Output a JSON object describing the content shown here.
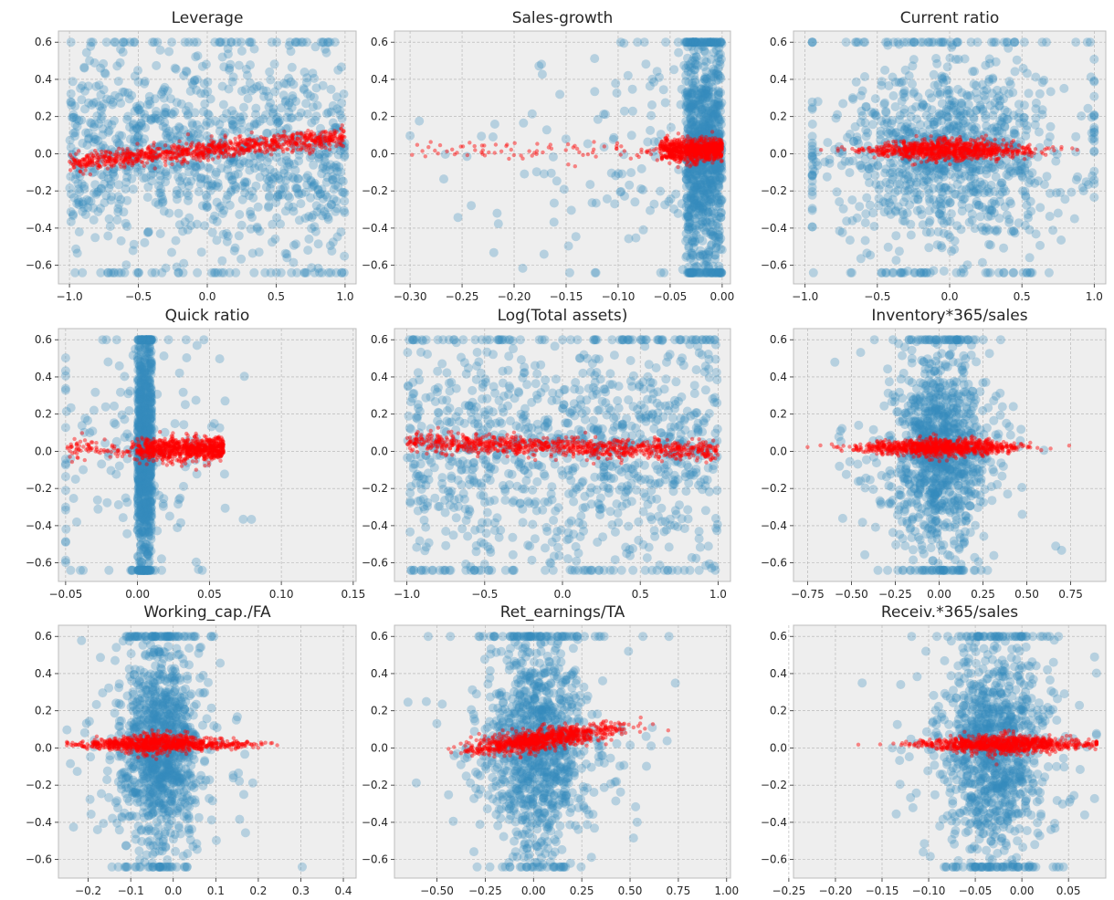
{
  "figure": {
    "style": "bmh",
    "panel_background": "#eeeeee",
    "grid_color": "#b0b0b0",
    "colors": {
      "population": "#348abd",
      "model": "#ff0000"
    }
  },
  "chart_data": [
    {
      "type": "scatter",
      "title": "Leverage",
      "xlim": [
        -1.08,
        1.08
      ],
      "ylim": [
        -0.7,
        0.66
      ],
      "xticks": [
        -1.0,
        -0.5,
        0.0,
        0.5,
        1.0
      ],
      "xticklabels": [
        "−1.0",
        "−0.5",
        "0.0",
        "0.5",
        "1.0"
      ],
      "yticks": [
        -0.6,
        -0.4,
        -0.2,
        0.0,
        0.2,
        0.4,
        0.6
      ],
      "yticklabels": [
        "−0.6",
        "−0.4",
        "−0.2",
        "0.0",
        "0.2",
        "0.4",
        "0.6"
      ],
      "grid": true,
      "series": [
        {
          "role": "population",
          "color": "#348abd",
          "shape": "uniform",
          "x_range": [
            -1.0,
            1.0
          ],
          "y_spread": 0.26,
          "y_clip": [
            -0.64,
            0.6
          ]
        },
        {
          "role": "model",
          "color": "#ff0000",
          "shape": "linear",
          "x_range": [
            -1.0,
            1.0
          ],
          "y_at_xmin": -0.05,
          "y_at_xmax": 0.09,
          "y_band": 0.05
        }
      ]
    },
    {
      "type": "scatter",
      "title": "Sales-growth",
      "xlim": [
        -0.315,
        0.008
      ],
      "ylim": [
        -0.7,
        0.66
      ],
      "xticks": [
        -0.3,
        -0.25,
        -0.2,
        -0.15,
        -0.1,
        -0.05,
        0.0
      ],
      "xticklabels": [
        "−0.30",
        "−0.25",
        "−0.20",
        "−0.15",
        "−0.10",
        "−0.05",
        "0.00"
      ],
      "yticks": [
        -0.6,
        -0.4,
        -0.2,
        0.0,
        0.2,
        0.4,
        0.6
      ],
      "yticklabels": [
        "−0.6",
        "−0.4",
        "−0.2",
        "0.0",
        "0.2",
        "0.4",
        "0.6"
      ],
      "grid": true,
      "series": [
        {
          "role": "population",
          "color": "#348abd",
          "shape": "left-tail",
          "x_range": [
            -0.3,
            0.0
          ],
          "x_core": [
            -0.035,
            0.0
          ],
          "y_spread": 0.3,
          "y_clip": [
            -0.64,
            0.6
          ]
        },
        {
          "role": "model",
          "color": "#ff0000",
          "shape": "cloud",
          "x_range": [
            -0.3,
            0.0
          ],
          "x_core": [
            -0.06,
            0.0
          ],
          "y_center": 0.02,
          "y_band": 0.05
        }
      ]
    },
    {
      "type": "scatter",
      "title": "Current ratio",
      "xlim": [
        -1.08,
        1.08
      ],
      "ylim": [
        -0.7,
        0.66
      ],
      "xticks": [
        -1.0,
        -0.5,
        0.0,
        0.5,
        1.0
      ],
      "xticklabels": [
        "−1.0",
        "−0.5",
        "0.0",
        "0.5",
        "1.0"
      ],
      "yticks": [
        -0.6,
        -0.4,
        -0.2,
        0.0,
        0.2,
        0.4,
        0.6
      ],
      "yticklabels": [
        "−0.6",
        "−0.4",
        "−0.2",
        "0.0",
        "0.2",
        "0.4",
        "0.6"
      ],
      "grid": true,
      "series": [
        {
          "role": "population",
          "color": "#348abd",
          "shape": "bell",
          "x_range": [
            -0.95,
            1.0
          ],
          "x_center": 0.0,
          "x_spread": 0.38,
          "y_spread": 0.22,
          "y_clip": [
            -0.64,
            0.6
          ]
        },
        {
          "role": "model",
          "color": "#ff0000",
          "shape": "ellipse",
          "x_range": [
            -0.95,
            1.0
          ],
          "x_center": 0.0,
          "y_center": 0.02,
          "y_band": 0.06
        }
      ]
    },
    {
      "type": "scatter",
      "title": "Quick ratio",
      "xlim": [
        -0.055,
        0.152
      ],
      "ylim": [
        -0.7,
        0.66
      ],
      "xticks": [
        -0.05,
        0.0,
        0.05,
        0.1,
        0.15
      ],
      "xticklabels": [
        "−0.05",
        "0.00",
        "0.05",
        "0.10",
        "0.15"
      ],
      "yticks": [
        -0.6,
        -0.4,
        -0.2,
        0.0,
        0.2,
        0.4,
        0.6
      ],
      "yticklabels": [
        "−0.6",
        "−0.4",
        "−0.2",
        "0.0",
        "0.2",
        "0.4",
        "0.6"
      ],
      "grid": true,
      "series": [
        {
          "role": "population",
          "color": "#348abd",
          "shape": "spike",
          "x_range": [
            -0.05,
            0.145
          ],
          "x_core": [
            0.0,
            0.01
          ],
          "y_spread": 0.3,
          "y_clip": [
            -0.64,
            0.6
          ]
        },
        {
          "role": "model",
          "color": "#ff0000",
          "shape": "cloud",
          "x_range": [
            -0.05,
            0.145
          ],
          "x_core": [
            0.0,
            0.06
          ],
          "y_center": 0.01,
          "y_band": 0.05
        }
      ]
    },
    {
      "type": "scatter",
      "title": "Log(Total assets)",
      "xlim": [
        -1.08,
        1.08
      ],
      "ylim": [
        -0.7,
        0.66
      ],
      "xticks": [
        -1.0,
        -0.5,
        0.0,
        0.5,
        1.0
      ],
      "xticklabels": [
        "−1.0",
        "−0.5",
        "0.0",
        "0.5",
        "1.0"
      ],
      "yticks": [
        -0.6,
        -0.4,
        -0.2,
        0.0,
        0.2,
        0.4,
        0.6
      ],
      "yticklabels": [
        "−0.6",
        "−0.4",
        "−0.2",
        "0.0",
        "0.2",
        "0.4",
        "0.6"
      ],
      "grid": true,
      "series": [
        {
          "role": "population",
          "color": "#348abd",
          "shape": "uniform",
          "x_range": [
            -1.0,
            1.0
          ],
          "y_spread": 0.3,
          "y_clip": [
            -0.64,
            0.6
          ]
        },
        {
          "role": "model",
          "color": "#ff0000",
          "shape": "linear",
          "x_range": [
            -1.0,
            1.0
          ],
          "y_at_xmin": 0.05,
          "y_at_xmax": 0.0,
          "y_band": 0.05
        }
      ]
    },
    {
      "type": "scatter",
      "title": "Inventory*365/sales",
      "xlim": [
        -0.83,
        0.95
      ],
      "ylim": [
        -0.7,
        0.66
      ],
      "xticks": [
        -0.75,
        -0.5,
        -0.25,
        0.0,
        0.25,
        0.5,
        0.75
      ],
      "xticklabels": [
        "−0.75",
        "−0.50",
        "−0.25",
        "0.00",
        "0.25",
        "0.50",
        "0.75"
      ],
      "yticks": [
        -0.6,
        -0.4,
        -0.2,
        0.0,
        0.2,
        0.4,
        0.6
      ],
      "yticklabels": [
        "−0.6",
        "−0.4",
        "−0.2",
        "0.0",
        "0.2",
        "0.4",
        "0.6"
      ],
      "grid": true,
      "series": [
        {
          "role": "population",
          "color": "#348abd",
          "shape": "bell",
          "x_range": [
            -0.75,
            0.88
          ],
          "x_center": 0.0,
          "x_spread": 0.13,
          "y_spread": 0.26,
          "y_clip": [
            -0.64,
            0.6
          ]
        },
        {
          "role": "model",
          "color": "#ff0000",
          "shape": "ellipse",
          "x_range": [
            -0.75,
            0.88
          ],
          "x_center": 0.0,
          "y_center": 0.02,
          "y_band": 0.05
        }
      ]
    },
    {
      "type": "scatter",
      "title": "Working_cap./FA",
      "xlim": [
        -0.27,
        0.43
      ],
      "ylim": [
        -0.7,
        0.66
      ],
      "xticks": [
        -0.2,
        -0.1,
        0.0,
        0.1,
        0.2,
        0.3,
        0.4
      ],
      "xticklabels": [
        "−0.2",
        "−0.1",
        "0.0",
        "0.1",
        "0.2",
        "0.3",
        "0.4"
      ],
      "yticks": [
        -0.6,
        -0.4,
        -0.2,
        0.0,
        0.2,
        0.4,
        0.6
      ],
      "yticklabels": [
        "−0.6",
        "−0.4",
        "−0.2",
        "0.0",
        "0.2",
        "0.4",
        "0.6"
      ],
      "grid": true,
      "series": [
        {
          "role": "population",
          "color": "#348abd",
          "shape": "bell",
          "x_range": [
            -0.25,
            0.4
          ],
          "x_center": -0.03,
          "x_spread": 0.045,
          "y_spread": 0.26,
          "y_clip": [
            -0.64,
            0.6
          ]
        },
        {
          "role": "model",
          "color": "#ff0000",
          "shape": "ellipse",
          "x_range": [
            -0.25,
            0.4
          ],
          "x_center": -0.03,
          "y_center": 0.02,
          "y_band": 0.05
        }
      ]
    },
    {
      "type": "scatter",
      "title": "Ret_earnings/TA",
      "xlim": [
        -0.72,
        1.02
      ],
      "ylim": [
        -0.7,
        0.66
      ],
      "xticks": [
        -0.5,
        -0.25,
        0.0,
        0.25,
        0.5,
        0.75,
        1.0
      ],
      "xticklabels": [
        "−0.50",
        "−0.25",
        "0.00",
        "0.25",
        "0.50",
        "0.75",
        "1.00"
      ],
      "yticks": [
        -0.6,
        -0.4,
        -0.2,
        0.0,
        0.2,
        0.4,
        0.6
      ],
      "yticklabels": [
        "−0.6",
        "−0.4",
        "−0.2",
        "0.0",
        "0.2",
        "0.4",
        "0.6"
      ],
      "grid": true,
      "series": [
        {
          "role": "population",
          "color": "#348abd",
          "shape": "bell",
          "x_range": [
            -0.65,
            0.95
          ],
          "x_center": 0.02,
          "x_spread": 0.13,
          "y_spread": 0.26,
          "y_clip": [
            -0.64,
            0.6
          ]
        },
        {
          "role": "model",
          "color": "#ff0000",
          "shape": "linear-cloud",
          "x_range": [
            -0.65,
            0.95
          ],
          "x_center": 0.05,
          "y_at_x0": 0.04,
          "slope": 0.14,
          "y_band": 0.05
        }
      ]
    },
    {
      "type": "scatter",
      "title": "Receiv.*365/sales",
      "xlim": [
        -0.245,
        0.09
      ],
      "ylim": [
        -0.7,
        0.66
      ],
      "xticks": [
        -0.25,
        -0.2,
        -0.15,
        -0.1,
        -0.05,
        0.0,
        0.05
      ],
      "xticklabels": [
        "−0.25",
        "−0.20",
        "−0.15",
        "−0.10",
        "−0.05",
        "0.00",
        "0.05"
      ],
      "yticks": [
        -0.6,
        -0.4,
        -0.2,
        0.0,
        0.2,
        0.4,
        0.6
      ],
      "yticklabels": [
        "−0.6",
        "−0.4",
        "−0.2",
        "0.0",
        "0.2",
        "0.4",
        "0.6"
      ],
      "grid": true,
      "series": [
        {
          "role": "population",
          "color": "#348abd",
          "shape": "bell",
          "x_range": [
            -0.24,
            0.08
          ],
          "x_center": -0.03,
          "x_spread": 0.025,
          "y_spread": 0.26,
          "y_clip": [
            -0.64,
            0.6
          ]
        },
        {
          "role": "model",
          "color": "#ff0000",
          "shape": "ellipse",
          "x_range": [
            -0.24,
            0.08
          ],
          "x_center": -0.02,
          "y_center": 0.02,
          "y_band": 0.05
        }
      ]
    }
  ]
}
